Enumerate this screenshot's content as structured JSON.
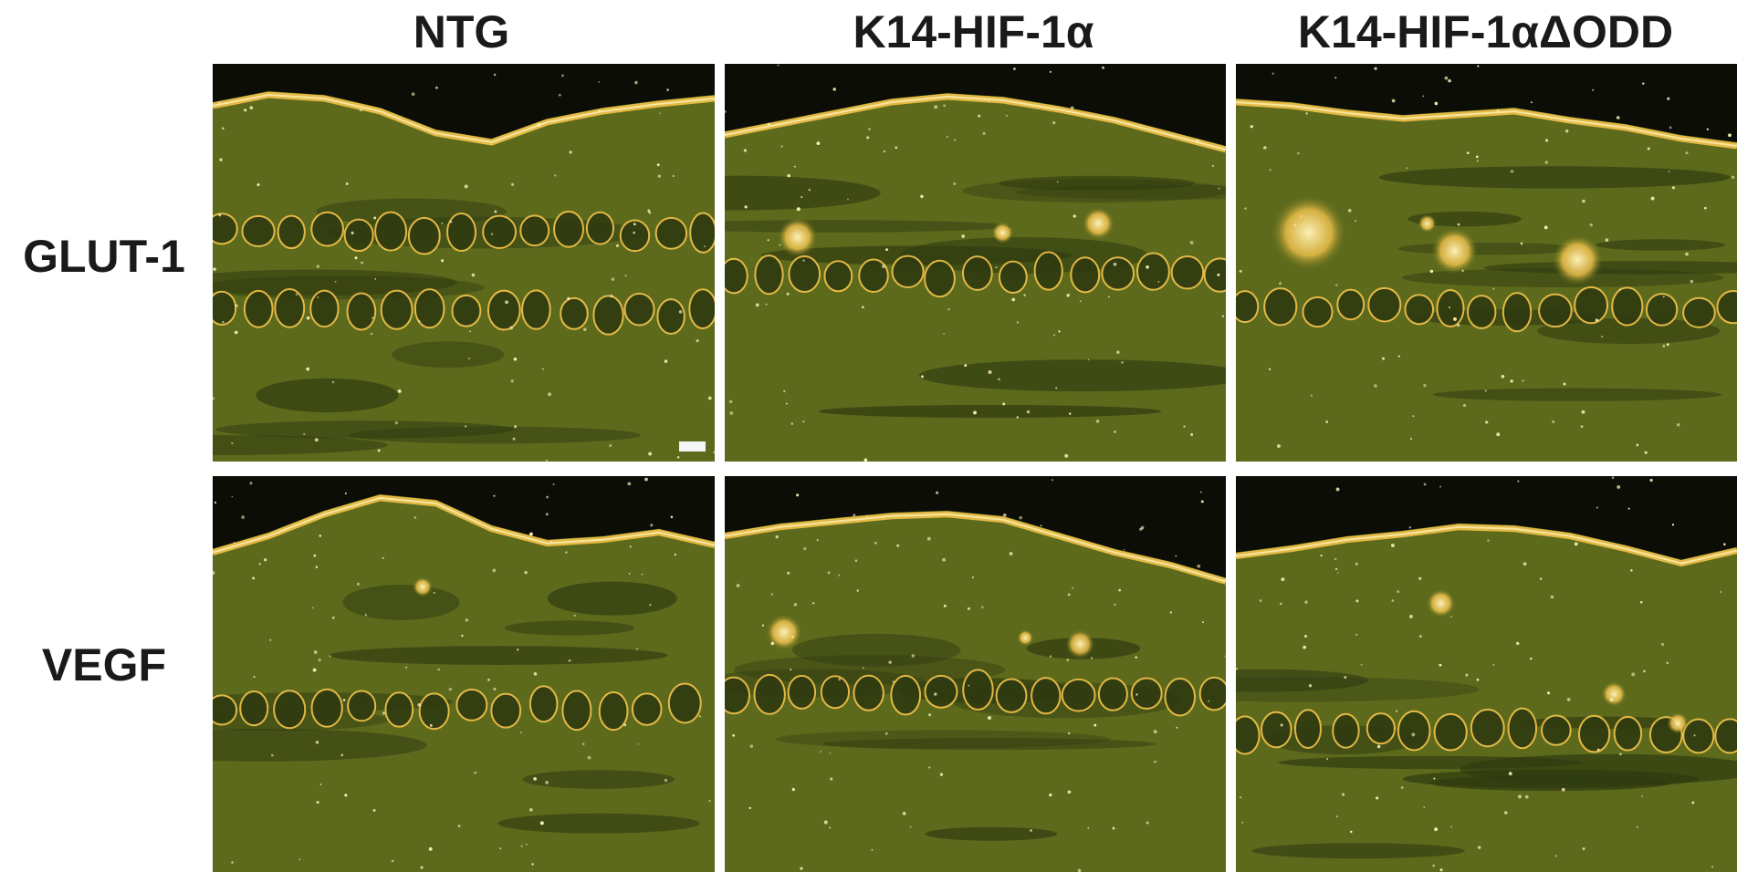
{
  "figure": {
    "column_labels": [
      "NTG",
      "K14-HIF-1α",
      "K14-HIF-1αΔODD"
    ],
    "row_labels": [
      "GLUT-1",
      "VEGF"
    ],
    "panels": [
      {
        "row": "GLUT-1",
        "column": "NTG",
        "name": "panel-glut1-ntg"
      },
      {
        "row": "GLUT-1",
        "column": "K14-HIF-1α",
        "name": "panel-glut1-k14-hif1a"
      },
      {
        "row": "GLUT-1",
        "column": "K14-HIF-1αΔODD",
        "name": "panel-glut1-k14-hif1a-dodd"
      },
      {
        "row": "VEGF",
        "column": "NTG",
        "name": "panel-vegf-ntg"
      },
      {
        "row": "VEGF",
        "column": "K14-HIF-1α",
        "name": "panel-vegf-k14-hif1a"
      },
      {
        "row": "VEGF",
        "column": "K14-HIF-1αΔODD",
        "name": "panel-vegf-k14-hif1a-dodd"
      }
    ],
    "colors": {
      "background": "#ffffff",
      "tissue": "#5d6a1c",
      "tissue_dark": "#2f3a10",
      "air": "#0c0d07",
      "epidermis_highlight": "#f3c24a",
      "signal_bright": "#fbf1b8",
      "scale_bar": "#f2f6f8"
    }
  }
}
